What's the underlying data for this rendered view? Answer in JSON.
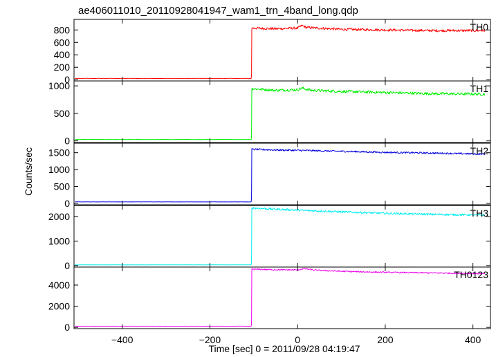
{
  "chart_data": {
    "type": "line",
    "title": "ae406011010_20110928041947_wam1_trn_4band_long.qdp",
    "xlabel": "Time [sec] 0 = 2011/09/28 04:19:47",
    "ylabel": "Counts/sec",
    "xlim": [
      -510,
      440
    ],
    "xticks": [
      -400,
      -200,
      0,
      200,
      400
    ],
    "xtick_labels": [
      "−400",
      "−200",
      "0",
      "200",
      "400"
    ],
    "onset_time": -105,
    "grid": false,
    "panels": [
      {
        "name": "TH0",
        "color": "#ff0000",
        "ylim": [
          -20,
          970
        ],
        "yticks": [
          0,
          200,
          400,
          600,
          800
        ],
        "ytick_labels": [
          "0",
          "200",
          "400",
          "600",
          "800"
        ],
        "pre_level": 20,
        "profile": [
          [
            -105,
            830
          ],
          [
            -50,
            820
          ],
          [
            0,
            830
          ],
          [
            10,
            870
          ],
          [
            20,
            840
          ],
          [
            100,
            810
          ],
          [
            200,
            800
          ],
          [
            300,
            790
          ],
          [
            420,
            790
          ]
        ],
        "noise": 20
      },
      {
        "name": "TH1",
        "color": "#00ee00",
        "ylim": [
          -30,
          1090
        ],
        "yticks": [
          0,
          500,
          1000
        ],
        "ytick_labels": [
          "0",
          "500",
          "1000"
        ],
        "pre_level": 25,
        "profile": [
          [
            -105,
            950
          ],
          [
            -50,
            920
          ],
          [
            0,
            930
          ],
          [
            10,
            960
          ],
          [
            30,
            920
          ],
          [
            100,
            900
          ],
          [
            200,
            880
          ],
          [
            300,
            860
          ],
          [
            420,
            850
          ]
        ],
        "noise": 25
      },
      {
        "name": "TH2",
        "color": "#0000dd",
        "ylim": [
          -40,
          1780
        ],
        "yticks": [
          0,
          500,
          1000,
          1500
        ],
        "ytick_labels": [
          "0",
          "500",
          "1000",
          "1500"
        ],
        "pre_level": 45,
        "profile": [
          [
            -105,
            1600
          ],
          [
            -50,
            1580
          ],
          [
            0,
            1570
          ],
          [
            100,
            1540
          ],
          [
            200,
            1510
          ],
          [
            300,
            1490
          ],
          [
            420,
            1460
          ]
        ],
        "noise": 25
      },
      {
        "name": "TH3",
        "color": "#00eeee",
        "ylim": [
          -60,
          2450
        ],
        "yticks": [
          0,
          1000,
          2000
        ],
        "ytick_labels": [
          "0",
          "1000",
          "2000"
        ],
        "pre_level": 30,
        "profile": [
          [
            -105,
            2350
          ],
          [
            -50,
            2300
          ],
          [
            0,
            2260
          ],
          [
            100,
            2190
          ],
          [
            200,
            2130
          ],
          [
            300,
            2090
          ],
          [
            420,
            2060
          ]
        ],
        "noise": 40
      },
      {
        "name": "TH0123",
        "color": "#ee00ee",
        "ylim": [
          -120,
          5700
        ],
        "yticks": [
          0,
          2000,
          4000
        ],
        "ytick_labels": [
          "0",
          "2000",
          "4000"
        ],
        "pre_level": 110,
        "profile": [
          [
            -105,
            5500
          ],
          [
            -50,
            5450
          ],
          [
            0,
            5430
          ],
          [
            15,
            5550
          ],
          [
            40,
            5400
          ],
          [
            100,
            5300
          ],
          [
            200,
            5200
          ],
          [
            300,
            5150
          ],
          [
            420,
            5080
          ]
        ],
        "noise": 60
      }
    ]
  }
}
